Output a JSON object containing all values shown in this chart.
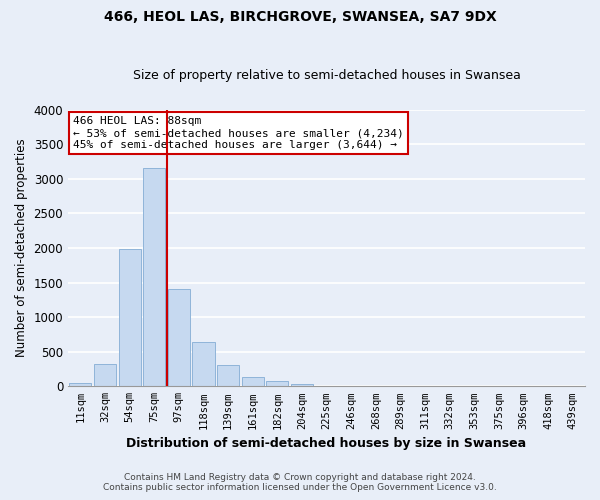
{
  "title": "466, HEOL LAS, BIRCHGROVE, SWANSEA, SA7 9DX",
  "subtitle": "Size of property relative to semi-detached houses in Swansea",
  "xlabel": "Distribution of semi-detached houses by size in Swansea",
  "ylabel": "Number of semi-detached properties",
  "bin_labels": [
    "11sqm",
    "32sqm",
    "54sqm",
    "75sqm",
    "97sqm",
    "118sqm",
    "139sqm",
    "161sqm",
    "182sqm",
    "204sqm",
    "225sqm",
    "246sqm",
    "268sqm",
    "289sqm",
    "311sqm",
    "332sqm",
    "353sqm",
    "375sqm",
    "396sqm",
    "418sqm",
    "439sqm"
  ],
  "bar_values": [
    50,
    320,
    1980,
    3160,
    1400,
    640,
    310,
    140,
    70,
    30,
    10,
    5,
    2,
    0,
    0,
    0,
    0,
    0,
    0,
    0,
    0
  ],
  "bar_color": "#c6d9f0",
  "bar_edge_color": "#8fb4d9",
  "marker_line_color": "#cc0000",
  "annotation_title": "466 HEOL LAS: 88sqm",
  "annotation_line1": "← 53% of semi-detached houses are smaller (4,234)",
  "annotation_line2": "45% of semi-detached houses are larger (3,644) →",
  "annotation_box_color": "#ffffff",
  "annotation_box_edge_color": "#cc0000",
  "ylim": [
    0,
    4000
  ],
  "yticks": [
    0,
    500,
    1000,
    1500,
    2000,
    2500,
    3000,
    3500,
    4000
  ],
  "footer1": "Contains HM Land Registry data © Crown copyright and database right 2024.",
  "footer2": "Contains public sector information licensed under the Open Government Licence v3.0.",
  "background_color": "#e8eef8",
  "grid_color": "#ffffff"
}
